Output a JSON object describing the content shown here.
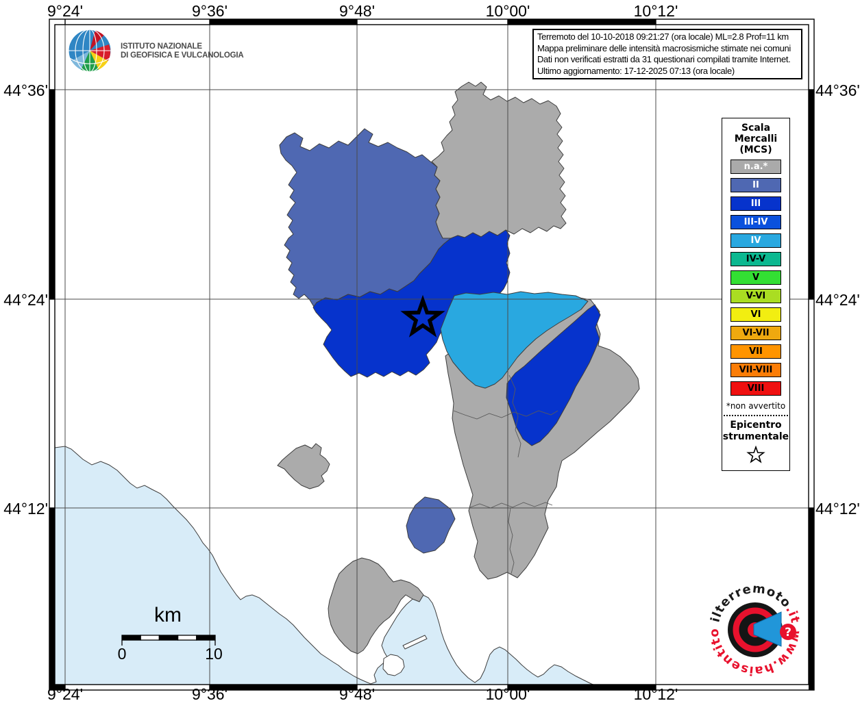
{
  "header": {
    "ingv_logo": {
      "line1": "ISTITUTO NAZIONALE",
      "line2": "DI GEOFISICA E VULCANOLOGIA"
    },
    "info_box": {
      "line1": "Terremoto del 10-10-2018 09:21:27 (ora locale) ML=2.8 Prof=11 km",
      "line2": "Mappa preliminare delle intensità macrosismiche stimate nei comuni",
      "line3": "Dati non verificati estratti da 31 questionari compilati tramite Internet.",
      "line4": "Ultimo aggiornamento: 17-12-2025 07:13 (ora locale)"
    }
  },
  "axes": {
    "top": [
      "9°24'",
      "9°36'",
      "9°48'",
      "10°00'",
      "10°12'"
    ],
    "bottom": [
      "9°24'",
      "9°36'",
      "9°48'",
      "10°00'",
      "10°12'"
    ],
    "left": [
      "44°36'",
      "44°24'",
      "44°12'"
    ],
    "right": [
      "44°36'",
      "44°24'",
      "44°12'"
    ]
  },
  "legend": {
    "title_lines": [
      "Scala",
      "Mercalli",
      "(MCS)"
    ],
    "items": [
      {
        "label": "n.a.*",
        "color": "#aaaaaa",
        "text_color": "#ffffff"
      },
      {
        "label": "II",
        "color": "#4f68b2",
        "text_color": "#ffffff"
      },
      {
        "label": "III",
        "color": "#0633cc",
        "text_color": "#ffffff"
      },
      {
        "label": "III-IV",
        "color": "#0b51dd",
        "text_color": "#ffffff"
      },
      {
        "label": "IV",
        "color": "#29a8e0",
        "text_color": "#ffffff"
      },
      {
        "label": "IV-V",
        "color": "#0cb890",
        "text_color": "#000000"
      },
      {
        "label": "V",
        "color": "#33df33",
        "text_color": "#000000"
      },
      {
        "label": "V-VI",
        "color": "#aadd22",
        "text_color": "#000000"
      },
      {
        "label": "VI",
        "color": "#f2ee11",
        "text_color": "#000000"
      },
      {
        "label": "VI-VII",
        "color": "#efa90f",
        "text_color": "#000000"
      },
      {
        "label": "VII",
        "color": "#ff9400",
        "text_color": "#000000"
      },
      {
        "label": "VII-VIII",
        "color": "#fb7d07",
        "text_color": "#000000"
      },
      {
        "label": "VIII",
        "color": "#ef1010",
        "text_color": "#000000"
      }
    ],
    "footnote": "*non avvertito",
    "epicenter_title_lines": [
      "Epicentro",
      "strumentale"
    ]
  },
  "scale_bar": {
    "unit": "km",
    "start": "0",
    "end": "10"
  },
  "map": {
    "colors": {
      "sea": "#d8ecf8",
      "na": "#ababab",
      "ii": "#4f68b2",
      "iii": "#0633cc",
      "iv": "#29a8e0",
      "land": "#ffffff",
      "border": "#3c3c3c",
      "grid": "#4a4a4a"
    }
  },
  "watermark": {
    "text_top": "ilterremoto",
    "text_top_suffix": ".it",
    "text_bottom": "www.haisentito",
    "question_mark": "?",
    "red": "#e8112d",
    "blue": "#2196d9"
  }
}
